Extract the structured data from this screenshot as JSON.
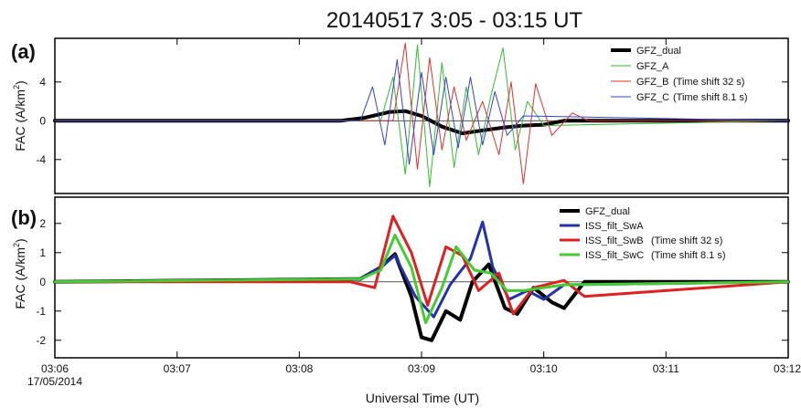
{
  "figure": {
    "title": "20140517 3:05 - 03:15 UT",
    "xlabel": "Universal Time (UT)",
    "date_label": "17/05/2014"
  },
  "chart_data": [
    {
      "type": "line",
      "panel_label": "(a)",
      "title": "20140517 3:05 - 03:15 UT",
      "xlabel": "",
      "ylabel": "FAC (A/km²)",
      "ylabel_main": "FAC (A/km",
      "ylabel_sup": "2",
      "ylabel_tail": ")",
      "xlim": [
        "03:06:00",
        "03:12:00"
      ],
      "ylim": [
        -7.5,
        8.5
      ],
      "yticks": [
        -4,
        0,
        4
      ],
      "zero_line": true,
      "legend_position": "top-right",
      "series": [
        {
          "name": "GFZ_dual",
          "color": "#000000",
          "width": 4,
          "x": [
            "03:06:00",
            "03:08:20",
            "03:08:32",
            "03:08:44",
            "03:08:52",
            "03:09:00",
            "03:09:10",
            "03:09:20",
            "03:09:30",
            "03:09:40",
            "03:09:50",
            "03:10:00",
            "03:10:10",
            "03:12:00"
          ],
          "y": [
            0,
            0,
            0.3,
            0.9,
            1.0,
            0.5,
            -0.6,
            -1.3,
            -1.0,
            -0.7,
            -0.5,
            -0.4,
            0,
            0
          ]
        },
        {
          "name": "GFZ_A",
          "color": "#33bb33",
          "width": 1,
          "x": [
            "03:06:00",
            "03:08:40",
            "03:08:46",
            "03:08:52",
            "03:08:58",
            "03:09:04",
            "03:09:10",
            "03:09:16",
            "03:09:22",
            "03:09:28",
            "03:09:34",
            "03:09:40",
            "03:09:46",
            "03:09:52",
            "03:10:00",
            "03:12:00"
          ],
          "y": [
            0,
            0,
            4.5,
            -5.5,
            7.8,
            -6.8,
            6.0,
            -4.8,
            3.5,
            -3.5,
            2.5,
            7.5,
            -3.0,
            2.0,
            -0.5,
            0
          ]
        },
        {
          "name": "GFZ_B",
          "label": "GFZ_B",
          "note": "(Time shift  32 s)",
          "color": "#e03030",
          "width": 1,
          "x": [
            "03:06:00",
            "03:08:46",
            "03:08:52",
            "03:08:58",
            "03:09:04",
            "03:09:10",
            "03:09:16",
            "03:09:22",
            "03:09:30",
            "03:09:38",
            "03:09:44",
            "03:09:50",
            "03:09:56",
            "03:10:04",
            "03:10:14",
            "03:10:22",
            "03:12:00"
          ],
          "y": [
            0,
            0,
            8.0,
            -5.0,
            6.5,
            -3.0,
            3.5,
            -2.0,
            2.0,
            -3.5,
            4.0,
            -6.5,
            3.8,
            -1.5,
            0.8,
            0,
            0
          ]
        },
        {
          "name": "GFZ_C",
          "label": "GFZ_C",
          "note": "(Time shift  8.1 s)",
          "color": "#3344cc",
          "width": 1,
          "x": [
            "03:06:00",
            "03:08:30",
            "03:08:36",
            "03:08:42",
            "03:08:48",
            "03:08:54",
            "03:09:00",
            "03:09:06",
            "03:09:12",
            "03:09:18",
            "03:09:24",
            "03:09:30",
            "03:09:36",
            "03:09:42",
            "03:09:50",
            "03:12:00"
          ],
          "y": [
            0,
            0,
            3.5,
            -2.5,
            6.3,
            -4.5,
            5.0,
            -3.5,
            4.5,
            -2.8,
            4.5,
            -2.5,
            3.0,
            -1.5,
            0.5,
            0
          ]
        }
      ]
    },
    {
      "type": "line",
      "panel_label": "(b)",
      "xlabel": "Universal Time (UT)",
      "ylabel": "FAC (A/km²)",
      "ylabel_main": "FAC (A/km",
      "ylabel_sup": "2",
      "ylabel_tail": ")",
      "xlim": [
        "03:06:00",
        "03:12:00"
      ],
      "ylim": [
        -2.6,
        2.9
      ],
      "yticks": [
        -2,
        -1,
        0,
        1,
        2
      ],
      "xticks": [
        "03:06",
        "03:07",
        "03:08",
        "03:09",
        "03:10",
        "03:11",
        "03:12"
      ],
      "zero_line": true,
      "legend_position": "top-right",
      "series": [
        {
          "name": "GFZ_dual",
          "color": "#000000",
          "width": 4,
          "x": [
            "03:06:00",
            "03:08:30",
            "03:08:40",
            "03:08:47",
            "03:08:55",
            "03:09:00",
            "03:09:05",
            "03:09:12",
            "03:09:19",
            "03:09:25",
            "03:09:33",
            "03:09:41",
            "03:09:47",
            "03:09:55",
            "03:10:04",
            "03:10:10",
            "03:10:20",
            "03:12:00"
          ],
          "y": [
            0,
            0.1,
            0.5,
            0.95,
            -0.5,
            -1.9,
            -2.0,
            -1.0,
            -1.3,
            0,
            0.6,
            -0.9,
            -1.1,
            -0.2,
            -0.7,
            -0.9,
            0,
            0
          ]
        },
        {
          "name": "ISS_filt_SwA",
          "color": "#2233aa",
          "width": 3,
          "x": [
            "03:06:00",
            "03:08:30",
            "03:08:40",
            "03:08:47",
            "03:08:57",
            "03:09:06",
            "03:09:14",
            "03:09:24",
            "03:09:30",
            "03:09:35",
            "03:09:43",
            "03:09:52",
            "03:10:00",
            "03:10:10",
            "03:12:00"
          ],
          "y": [
            0,
            0.1,
            0.5,
            0.9,
            -0.5,
            -1.2,
            -0.1,
            0.8,
            2.05,
            0.5,
            -0.6,
            -0.3,
            -0.6,
            -0.1,
            0
          ]
        },
        {
          "name": "ISS_filt_SwB",
          "label": "ISS_filt_SwB",
          "note": "(Time shift  32 s)",
          "color": "#e02020",
          "width": 3,
          "x": [
            "03:06:00",
            "03:08:25",
            "03:08:37",
            "03:08:46",
            "03:08:55",
            "03:09:03",
            "03:09:12",
            "03:09:20",
            "03:09:28",
            "03:09:38",
            "03:09:45",
            "03:09:55",
            "03:10:10",
            "03:10:20",
            "03:12:00"
          ],
          "y": [
            0,
            0,
            -0.2,
            2.25,
            1.0,
            -0.8,
            1.2,
            0.9,
            -0.3,
            0.3,
            -1.1,
            -0.2,
            0.05,
            -0.5,
            0
          ]
        },
        {
          "name": "ISS_filt_SwC",
          "label": "ISS_filt_SwC",
          "note": "(Time shift  8.1 s)",
          "color": "#44cc33",
          "width": 3,
          "x": [
            "03:06:00",
            "03:08:30",
            "03:08:40",
            "03:08:47",
            "03:08:55",
            "03:09:02",
            "03:09:10",
            "03:09:17",
            "03:09:26",
            "03:09:34",
            "03:09:42",
            "03:09:50",
            "03:10:00",
            "03:10:10",
            "03:12:00"
          ],
          "y": [
            0,
            0.1,
            0.4,
            1.6,
            0.5,
            -1.4,
            -0.2,
            1.2,
            0.4,
            0.3,
            -0.3,
            -0.3,
            -0.2,
            -0.1,
            0
          ]
        }
      ]
    }
  ]
}
